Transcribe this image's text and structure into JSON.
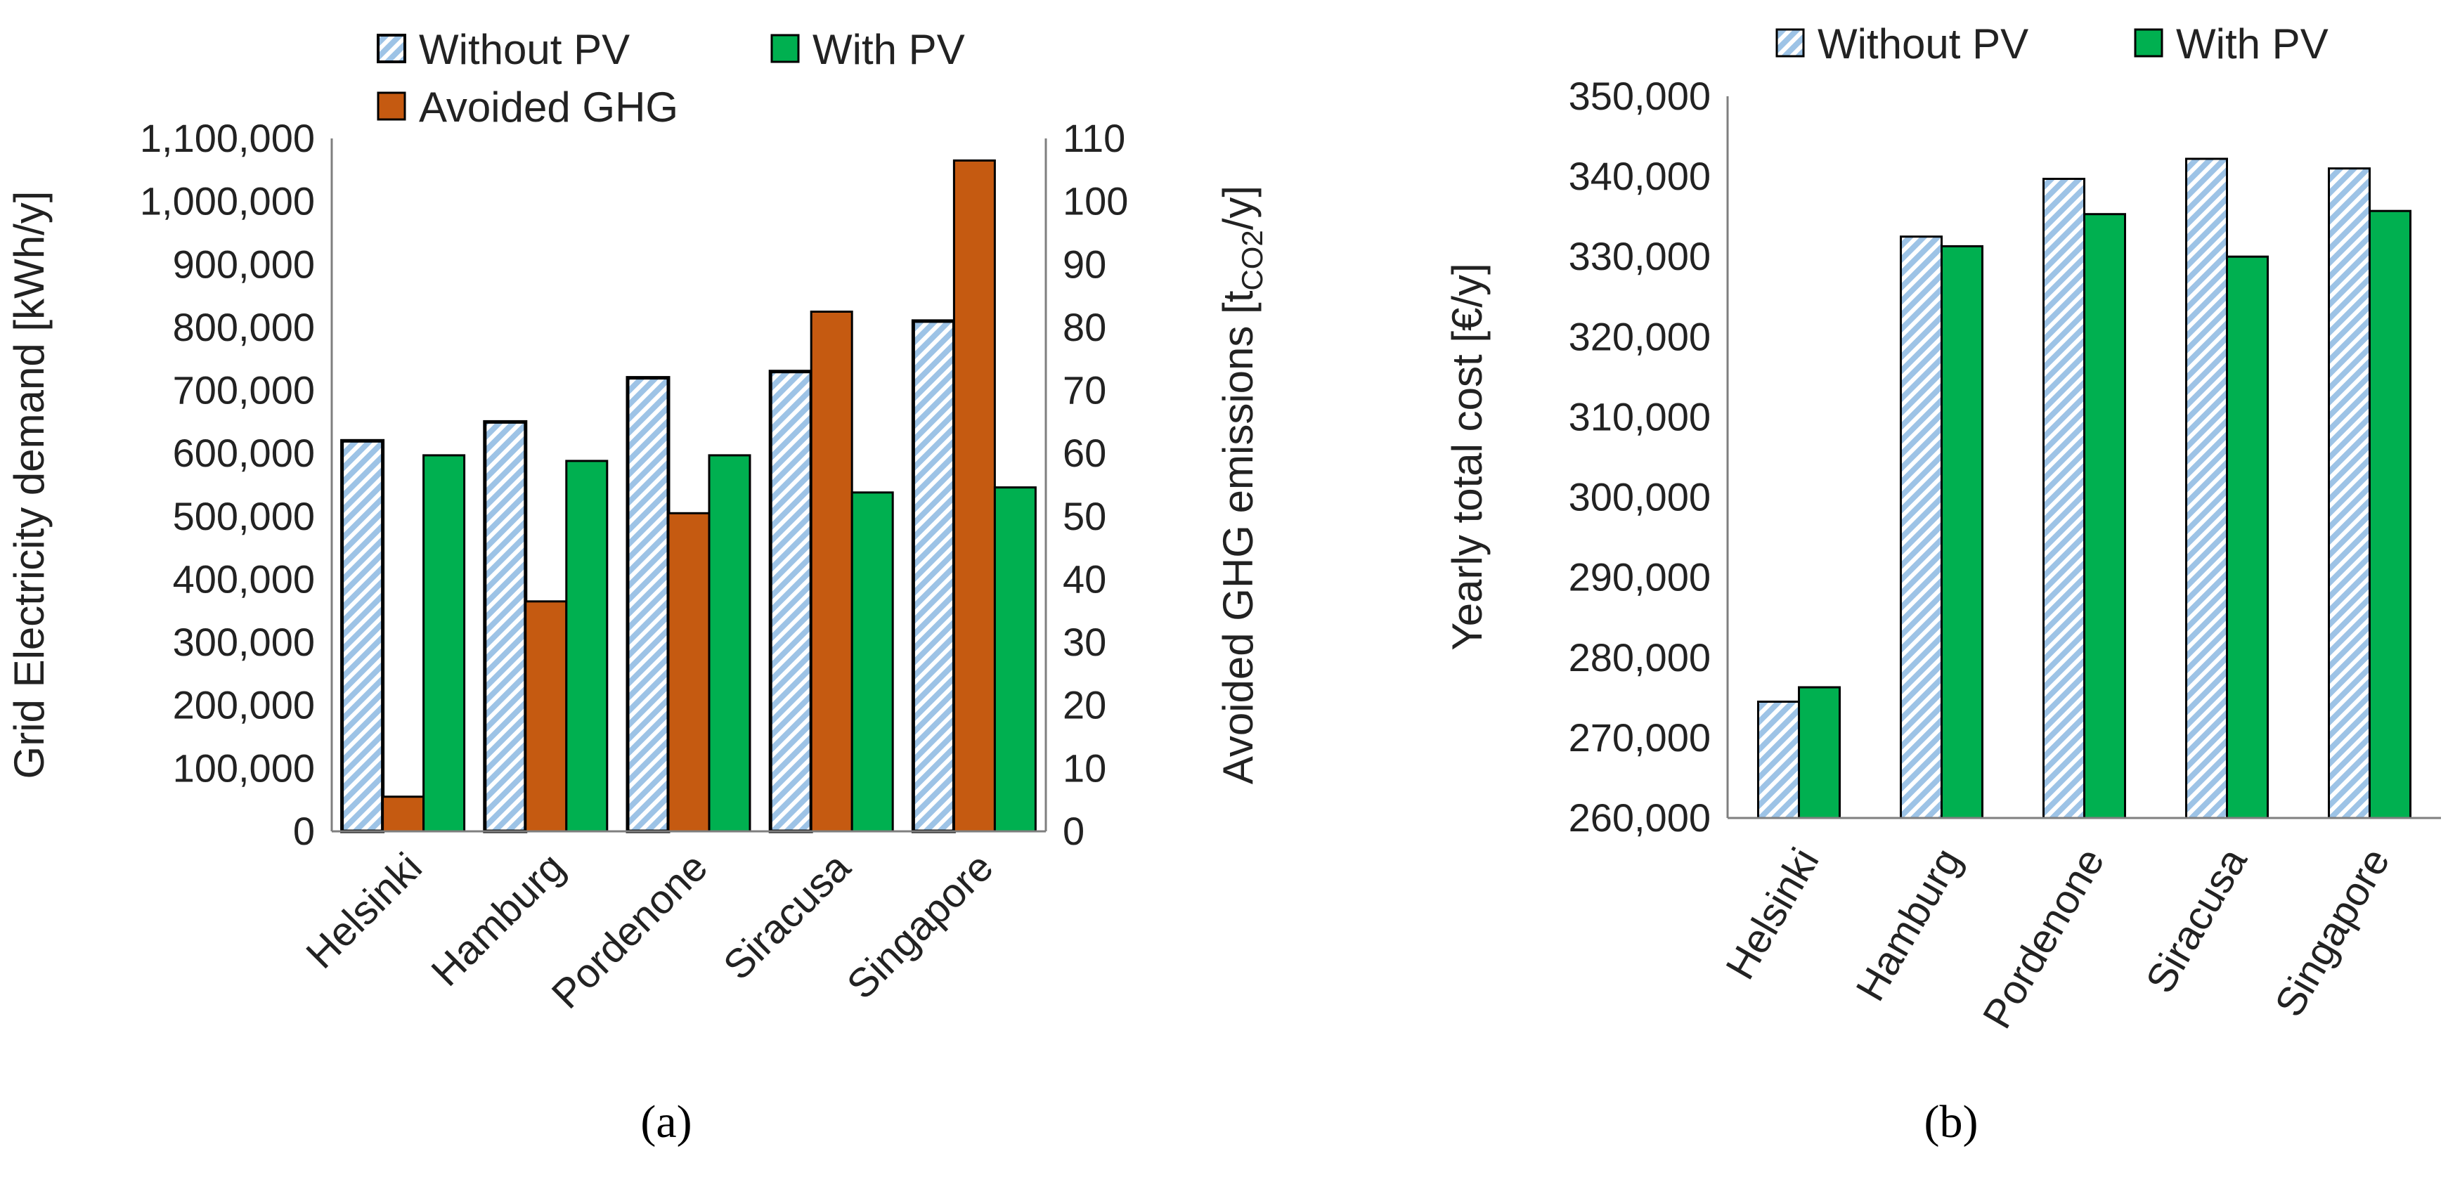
{
  "chart_data": [
    {
      "type": "bar",
      "panel_label": "(a)",
      "categories": [
        "Helsinki",
        "Hamburg",
        "Pordenone",
        "Siracusa",
        "Singapore"
      ],
      "series": [
        {
          "name": "Without PV",
          "axis": "left",
          "values": [
            620000,
            650000,
            720000,
            730000,
            810000
          ],
          "color": "#9dc3e6",
          "pattern": "diagonal-stripes"
        },
        {
          "name": "Avoided GHG",
          "axis": "right",
          "values": [
            5.5,
            36.5,
            50.5,
            82.5,
            106.5
          ],
          "color": "#c55a11"
        },
        {
          "name": "With PV",
          "axis": "left",
          "values": [
            597000,
            588000,
            597000,
            538000,
            546000
          ],
          "color": "#00b050"
        }
      ],
      "ylabel": "Grid Electricity demand [kWh/y]",
      "ylim": [
        0,
        1100000
      ],
      "yticks": [
        "0",
        "100,000",
        "200,000",
        "300,000",
        "400,000",
        "500,000",
        "600,000",
        "700,000",
        "800,000",
        "900,000",
        "1,000,000",
        "1,100,000"
      ],
      "y2label_main": "Avoided GHG emissions [t",
      "y2label_sub": "CO2",
      "y2label_end": "/y]",
      "y2lim": [
        0,
        110
      ],
      "y2ticks": [
        "0",
        "10",
        "20",
        "30",
        "40",
        "50",
        "60",
        "70",
        "80",
        "90",
        "100",
        "110"
      ],
      "legend": [
        "Without PV",
        "With PV",
        "Avoided GHG"
      ],
      "legend_position": "top"
    },
    {
      "type": "bar",
      "panel_label": "(b)",
      "categories": [
        "Helsinki",
        "Hamburg",
        "Pordenone",
        "Siracusa",
        "Singapore"
      ],
      "series": [
        {
          "name": "Without PV",
          "values": [
            274500,
            332500,
            339700,
            342200,
            341000
          ],
          "color": "#9dc3e6",
          "pattern": "diagonal-stripes"
        },
        {
          "name": "With PV",
          "values": [
            276300,
            331300,
            335300,
            330000,
            335700
          ],
          "color": "#00b050"
        }
      ],
      "ylabel": "Yearly total cost [€/y]",
      "ylim": [
        260000,
        350000
      ],
      "yticks": [
        "260,000",
        "270,000",
        "280,000",
        "290,000",
        "300,000",
        "310,000",
        "320,000",
        "330,000",
        "340,000",
        "350,000"
      ],
      "legend": [
        "Without PV",
        "With PV"
      ],
      "legend_position": "top"
    }
  ]
}
